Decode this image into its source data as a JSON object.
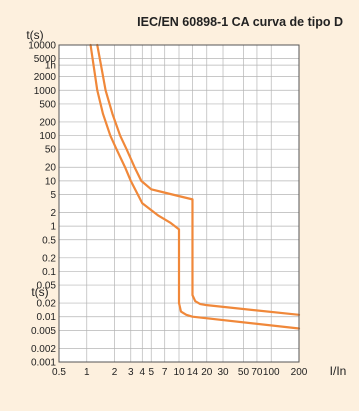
{
  "chart_data": {
    "type": "line",
    "title": "IEC/EN 60898-1 CA curva de tipo D",
    "ylabel": "t(s)",
    "ylabel_mid": "t(s)",
    "xlabel": "I/In",
    "x_scale": "log",
    "y_scale": "log",
    "xlim": [
      0.5,
      200
    ],
    "ylim": [
      0.001,
      10000
    ],
    "grid": true,
    "x_tick_labels": [
      "0.5",
      "1",
      "2",
      "3",
      "4",
      "5",
      "7",
      "10",
      "14",
      "20",
      "30",
      "50",
      "70",
      "100",
      "200"
    ],
    "x_tick_values": [
      0.5,
      1,
      2,
      3,
      4,
      5,
      7,
      10,
      14,
      20,
      30,
      50,
      70,
      100,
      200
    ],
    "y_tick_labels": [
      "10000",
      "5000",
      "1h",
      "2000",
      "1000",
      "500",
      "200",
      "100",
      "50",
      "20",
      "10",
      "5",
      "2",
      "1",
      "0.5",
      "0.2",
      "0.1",
      "0.05",
      "0.02",
      "0.01",
      "0.005",
      "0.002",
      "0.001"
    ],
    "y_tick_values": [
      10000,
      5000,
      3600,
      2000,
      1000,
      500,
      200,
      100,
      50,
      20,
      10,
      5,
      2,
      1,
      0.5,
      0.2,
      0.1,
      0.05,
      0.02,
      0.01,
      0.005,
      0.002,
      0.001
    ],
    "line_color": "#f0883a",
    "series": [
      {
        "points": [
          [
            1.1,
            10000
          ],
          [
            1.2,
            3000
          ],
          [
            1.3,
            1000
          ],
          [
            1.5,
            300
          ],
          [
            1.8,
            100
          ],
          [
            2.1,
            50
          ],
          [
            2.6,
            20
          ],
          [
            3,
            10
          ],
          [
            4,
            3.2
          ],
          [
            6,
            1.7
          ],
          [
            8,
            1.2
          ],
          [
            10,
            0.85
          ],
          [
            10,
            0.02
          ],
          [
            10.5,
            0.013
          ],
          [
            12,
            0.011
          ],
          [
            14,
            0.01
          ],
          [
            200,
            0.0055
          ]
        ]
      },
      {
        "points": [
          [
            1.3,
            10000
          ],
          [
            1.45,
            3000
          ],
          [
            1.6,
            1000
          ],
          [
            1.9,
            300
          ],
          [
            2.3,
            100
          ],
          [
            2.7,
            50
          ],
          [
            3.3,
            20
          ],
          [
            3.9,
            10
          ],
          [
            5,
            6.5
          ],
          [
            7,
            5.5
          ],
          [
            10,
            4.6
          ],
          [
            14,
            3.9
          ],
          [
            14,
            0.03
          ],
          [
            15,
            0.022
          ],
          [
            17,
            0.019
          ],
          [
            20,
            0.018
          ],
          [
            200,
            0.011
          ]
        ]
      }
    ]
  }
}
